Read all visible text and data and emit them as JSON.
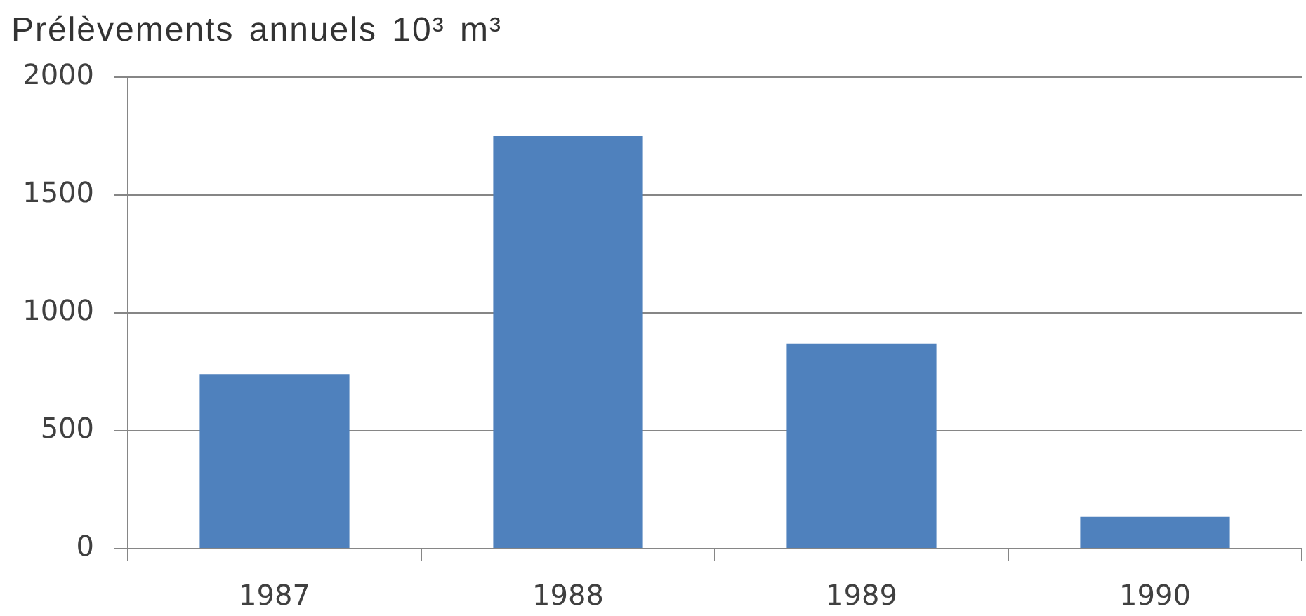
{
  "chart_data": {
    "type": "bar",
    "ylabel": "Prélèvements annuels 10³ m³",
    "categories": [
      "1987",
      "1988",
      "1989",
      "1990"
    ],
    "values": [
      740,
      1750,
      870,
      135
    ],
    "color": "#4f81bd",
    "ylim": [
      0,
      2000
    ],
    "yticks": [
      0,
      500,
      1000,
      1500,
      2000
    ],
    "grid": "y"
  }
}
